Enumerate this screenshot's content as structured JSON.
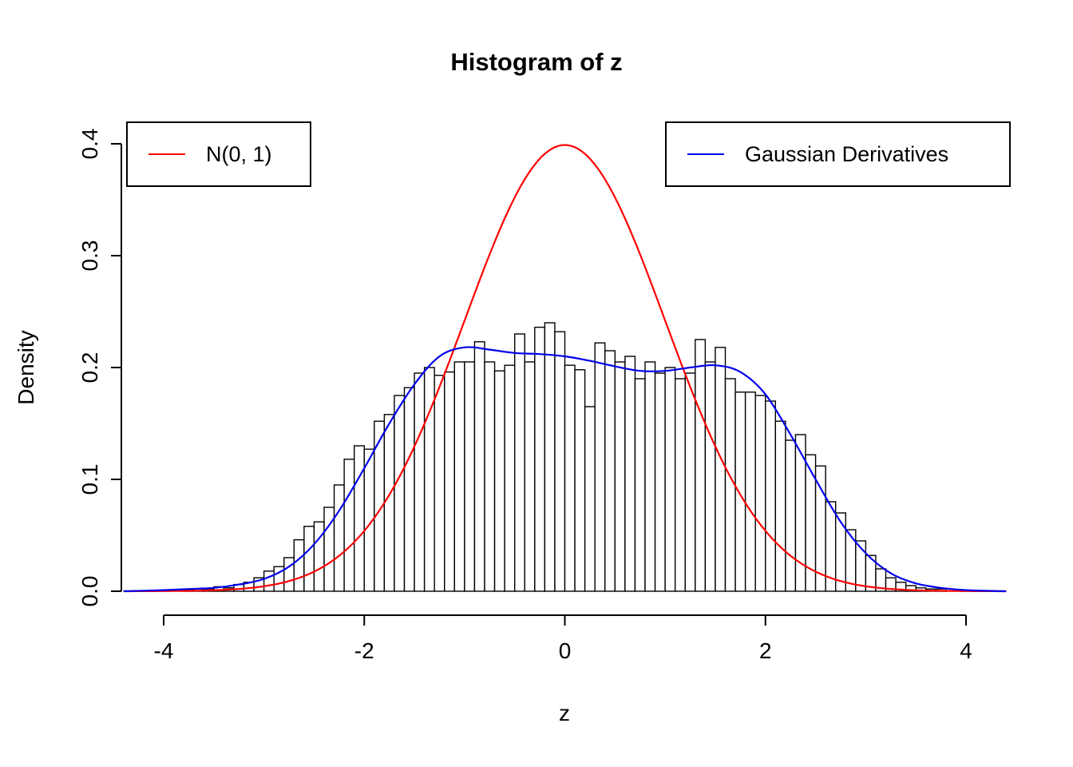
{
  "chart_data": {
    "type": "bar",
    "title": "Histogram of z",
    "xlabel": "z",
    "ylabel": "Density",
    "xlim": [
      -4.4,
      4.4
    ],
    "ylim": [
      0.0,
      0.4
    ],
    "x_ticks": [
      -4,
      -2,
      0,
      2,
      4
    ],
    "x_tick_labels": [
      "-4",
      "-2",
      "0",
      "2",
      "4"
    ],
    "y_ticks": [
      0.0,
      0.1,
      0.2,
      0.3,
      0.4
    ],
    "y_tick_labels": [
      "0.0",
      "0.1",
      "0.2",
      "0.3",
      "0.4"
    ],
    "grid": false,
    "histogram": {
      "bin_start": -3.8,
      "bin_width": 0.1,
      "bar_fill": "#ffffff",
      "bar_stroke": "#000000",
      "densities": [
        0.001,
        0.002,
        0.002,
        0.004,
        0.003,
        0.006,
        0.008,
        0.012,
        0.018,
        0.022,
        0.03,
        0.046,
        0.058,
        0.062,
        0.075,
        0.095,
        0.118,
        0.13,
        0.127,
        0.152,
        0.158,
        0.175,
        0.182,
        0.195,
        0.2,
        0.193,
        0.196,
        0.205,
        0.205,
        0.223,
        0.205,
        0.197,
        0.202,
        0.23,
        0.205,
        0.236,
        0.24,
        0.232,
        0.202,
        0.198,
        0.165,
        0.222,
        0.215,
        0.205,
        0.21,
        0.19,
        0.205,
        0.195,
        0.2,
        0.19,
        0.195,
        0.225,
        0.205,
        0.218,
        0.19,
        0.178,
        0.178,
        0.175,
        0.17,
        0.152,
        0.135,
        0.14,
        0.122,
        0.112,
        0.08,
        0.07,
        0.055,
        0.045,
        0.032,
        0.02,
        0.012,
        0.008,
        0.005,
        0.003,
        0.002,
        0.002
      ]
    },
    "series": [
      {
        "name": "N(0, 1)",
        "type": "line",
        "color": "#ff0000",
        "distribution": "normal",
        "mean": 0,
        "sd": 1,
        "peak_density": 0.3989
      },
      {
        "name": "Gaussian Derivatives",
        "type": "line",
        "color": "#0000ee",
        "x": [
          -4.4,
          -4.0,
          -3.75,
          -3.5,
          -3.25,
          -3.0,
          -2.75,
          -2.5,
          -2.25,
          -2.0,
          -1.75,
          -1.5,
          -1.25,
          -1.0,
          -0.75,
          -0.5,
          -0.25,
          0.0,
          0.25,
          0.5,
          0.75,
          1.0,
          1.25,
          1.5,
          1.75,
          2.0,
          2.25,
          2.5,
          2.75,
          3.0,
          3.25,
          3.5,
          3.75,
          4.0,
          4.4
        ],
        "y": [
          0.0,
          0.001,
          0.002,
          0.003,
          0.006,
          0.011,
          0.022,
          0.042,
          0.072,
          0.11,
          0.15,
          0.185,
          0.21,
          0.218,
          0.216,
          0.213,
          0.212,
          0.21,
          0.206,
          0.201,
          0.197,
          0.197,
          0.2,
          0.202,
          0.196,
          0.176,
          0.14,
          0.1,
          0.062,
          0.034,
          0.016,
          0.007,
          0.003,
          0.001,
          0.0
        ]
      }
    ],
    "legend": {
      "position": "top",
      "entries": [
        {
          "label": "N(0, 1)",
          "color": "#ff0000"
        },
        {
          "label": "Gaussian Derivatives",
          "color": "#0000ee"
        }
      ]
    }
  }
}
